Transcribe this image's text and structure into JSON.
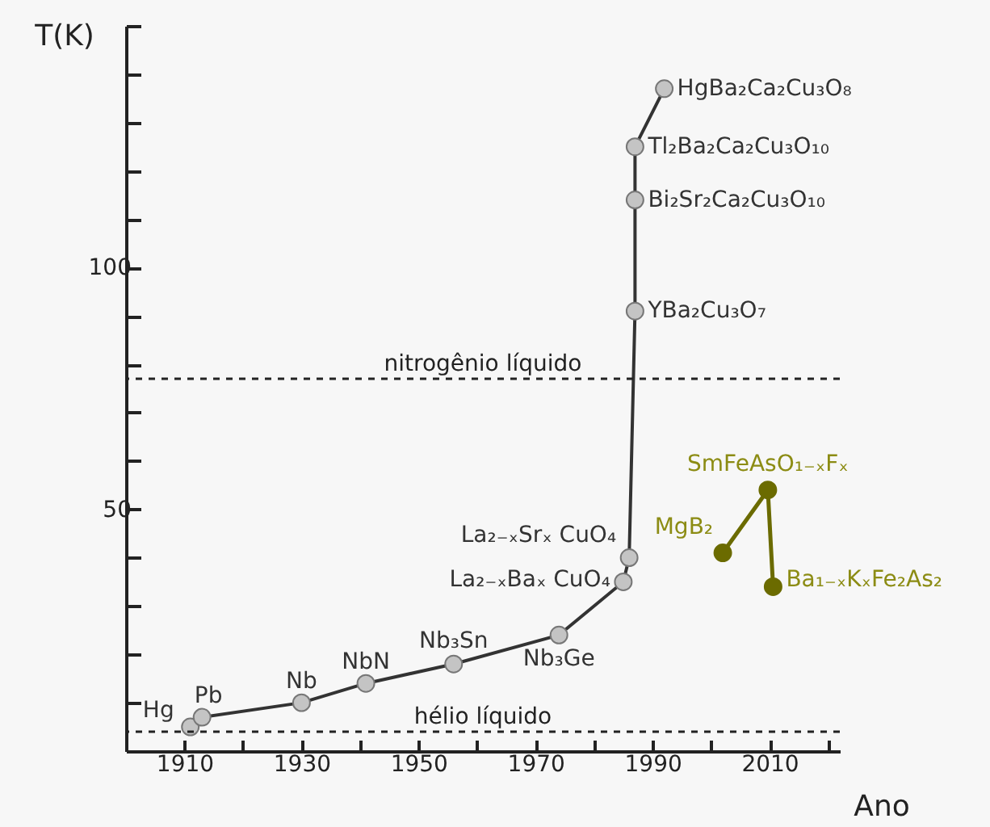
{
  "chart_data": {
    "type": "line",
    "xlabel": "Ano",
    "ylabel": "T(K)",
    "xlim": [
      1900,
      2022
    ],
    "xticks": [
      {
        "value": 1910,
        "label": "1910"
      },
      {
        "value": 1920,
        "label": null
      },
      {
        "value": 1930,
        "label": "1930"
      },
      {
        "value": 1940,
        "label": null
      },
      {
        "value": 1950,
        "label": "1950"
      },
      {
        "value": 1960,
        "label": null
      },
      {
        "value": 1970,
        "label": "1970"
      },
      {
        "value": 1980,
        "label": null
      },
      {
        "value": 1990,
        "label": "1990"
      },
      {
        "value": 2000,
        "label": null
      },
      {
        "value": 2010,
        "label": "2010"
      },
      {
        "value": 2020,
        "label": null
      }
    ],
    "ylim": [
      0,
      150
    ],
    "yticks": [
      {
        "value": 10,
        "label": null
      },
      {
        "value": 20,
        "label": null
      },
      {
        "value": 30,
        "label": null
      },
      {
        "value": 40,
        "label": null
      },
      50,
      {
        "value": 60,
        "label": null
      },
      {
        "value": 70,
        "label": null
      },
      {
        "value": 80,
        "label": null
      },
      {
        "value": 90,
        "label": null
      },
      100,
      {
        "value": 110,
        "label": null
      },
      {
        "value": 120,
        "label": null
      },
      {
        "value": 130,
        "label": null
      },
      {
        "value": 140,
        "label": null
      },
      {
        "value": 150,
        "label": null
      }
    ],
    "marker": "circle",
    "series": [
      {
        "color": "#333333",
        "x": [
          1911,
          1913,
          1930,
          1941,
          1956,
          1974,
          1985,
          1986,
          1987,
          1987,
          1987,
          1992
        ],
        "values": [
          5,
          7,
          10,
          14,
          18,
          24,
          35,
          40,
          91,
          114,
          125,
          137
        ],
        "value_labels": [
          "Hg",
          "Pb",
          "Nb",
          "NbN",
          "Nb₃Sn",
          "Nb₃Ge",
          "La₂₋ₓBaₓ CuO₄",
          "La₂₋ₓSrₓ CuO₄",
          "YBa₂Cu₃O₇",
          "Bi₂Sr₂Ca₂Cu₃O₁₀",
          "Tl₂Ba₂Ca₂Cu₃O₁₀",
          "HgBa₂Ca₂Cu₃O₈"
        ]
      },
      {
        "color": "#6b6b00",
        "x": [
          2002,
          2009.7,
          2010.6
        ],
        "values": [
          41,
          54,
          34
        ],
        "value_labels": [
          "MgB₂",
          "SmFeAsO₁₋ₓFₓ",
          "Ba₁₋ₓKₓFe₂As₂"
        ]
      }
    ],
    "ref_lines": [
      {
        "axis": "y",
        "value": 77,
        "label": "nitrogênio líquido",
        "line_style": "dashed"
      },
      {
        "axis": "y",
        "value": 4,
        "label": "hélio líquido",
        "line_style": "dashed"
      }
    ]
  }
}
